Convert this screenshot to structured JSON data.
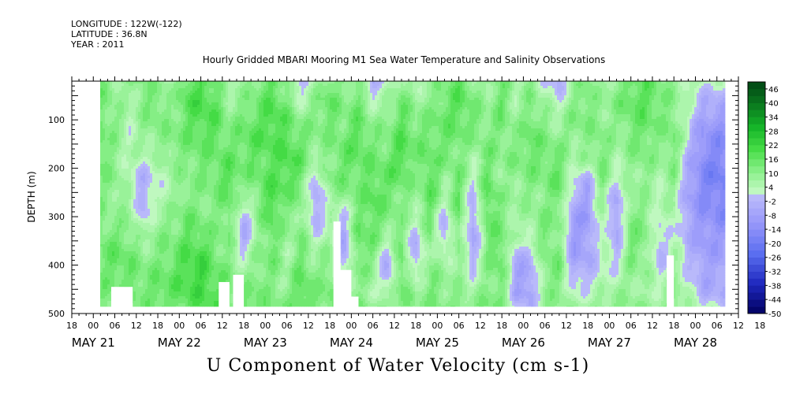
{
  "header": {
    "longitude": "LONGITUDE : 122W(-122)",
    "latitude": "LATITUDE : 36.8N",
    "year": "YEAR : 2011"
  },
  "chart_data": {
    "type": "heatmap",
    "title": "Hourly Gridded MBARI Mooring M1 Sea Water Temperature and Salinity Observations",
    "xlabel": "U Component of Water Velocity (cm s-1)",
    "ylabel": "DEPTH (m)",
    "ylim": [
      500,
      20
    ],
    "yticks": [
      100,
      200,
      300,
      400,
      500
    ],
    "y_data_range": [
      20,
      485
    ],
    "xlim_hours": [
      -6,
      180
    ],
    "x_data_range_hours": [
      2,
      176
    ],
    "xtick_hour_labels": [
      "18",
      "00",
      "06",
      "12",
      "18",
      "00",
      "06",
      "12",
      "18",
      "00",
      "06",
      "12",
      "18",
      "00",
      "06",
      "12",
      "18",
      "00",
      "06",
      "12",
      "18",
      "00",
      "06",
      "12",
      "18",
      "00",
      "06",
      "12",
      "18",
      "00",
      "06",
      "12",
      "18"
    ],
    "date_labels": [
      "MAY 21",
      "MAY 22",
      "MAY 23",
      "MAY 24",
      "MAY 25",
      "MAY 26",
      "MAY 27",
      "MAY 28"
    ],
    "colorbar": {
      "labels": [
        "46",
        "40",
        "34",
        "28",
        "22",
        "16",
        "10",
        "4",
        "-2",
        "-8",
        "-14",
        "-20",
        "-26",
        "-32",
        "-38",
        "-44",
        "-50"
      ],
      "levels_min": -50,
      "levels_max": 49,
      "levels_step": 3
    },
    "columns_hours": [
      2,
      6,
      10,
      14,
      18,
      22,
      26,
      30,
      34,
      38,
      42,
      46,
      50,
      54,
      58,
      62,
      66,
      70,
      74,
      78,
      82,
      86,
      90,
      94,
      98,
      102,
      106,
      110,
      114,
      118,
      122,
      126,
      130,
      134,
      138,
      142,
      146,
      150,
      154,
      158,
      162,
      166,
      170,
      174
    ],
    "depths_m": [
      20,
      60,
      100,
      140,
      180,
      220,
      260,
      300,
      340,
      380,
      420,
      460,
      485
    ],
    "values": [
      [
        14,
        13,
        12,
        16,
        14,
        12,
        11,
        12,
        13,
        14,
        13,
        12,
        12
      ],
      [
        8,
        10,
        12,
        10,
        9,
        11,
        10,
        8,
        14,
        16,
        15,
        13,
        12
      ],
      [
        10,
        4,
        5,
        3,
        6,
        2,
        8,
        10,
        12,
        14,
        15,
        14,
        13
      ],
      [
        12,
        12,
        10,
        8,
        4,
        -3,
        -5,
        -2,
        6,
        10,
        12,
        14,
        12
      ],
      [
        10,
        14,
        12,
        10,
        6,
        2,
        4,
        8,
        10,
        12,
        14,
        16,
        14
      ],
      [
        6,
        8,
        10,
        12,
        10,
        8,
        6,
        10,
        12,
        14,
        16,
        16,
        14
      ],
      [
        16,
        18,
        16,
        14,
        12,
        10,
        12,
        14,
        16,
        18,
        20,
        18,
        16
      ],
      [
        18,
        20,
        18,
        16,
        14,
        12,
        10,
        12,
        16,
        20,
        22,
        20,
        18
      ],
      [
        14,
        16,
        18,
        16,
        14,
        14,
        12,
        10,
        12,
        14,
        16,
        18,
        16
      ],
      [
        4,
        8,
        10,
        12,
        16,
        18,
        16,
        14,
        12,
        10,
        12,
        14,
        12
      ],
      [
        8,
        10,
        14,
        16,
        14,
        12,
        6,
        -4,
        -6,
        2,
        8,
        12,
        14
      ],
      [
        12,
        14,
        16,
        18,
        16,
        14,
        12,
        10,
        8,
        10,
        12,
        14,
        16
      ],
      [
        16,
        18,
        20,
        18,
        16,
        18,
        20,
        18,
        16,
        14,
        12,
        10,
        12
      ],
      [
        10,
        12,
        16,
        18,
        20,
        18,
        14,
        10,
        8,
        6,
        8,
        10,
        12
      ],
      [
        -3,
        4,
        10,
        14,
        16,
        14,
        12,
        10,
        12,
        14,
        16,
        18,
        16
      ],
      [
        6,
        10,
        12,
        10,
        8,
        -2,
        -6,
        -4,
        2,
        8,
        10,
        12,
        14
      ],
      [
        14,
        16,
        14,
        12,
        10,
        12,
        8,
        4,
        6,
        10,
        12,
        14,
        12
      ],
      [
        8,
        10,
        12,
        14,
        16,
        14,
        10,
        -2,
        -6,
        -8,
        2,
        10,
        12
      ],
      [
        12,
        14,
        16,
        18,
        16,
        14,
        12,
        14,
        16,
        14,
        12,
        10,
        12
      ],
      [
        -6,
        4,
        8,
        12,
        14,
        16,
        18,
        16,
        14,
        12,
        8,
        6,
        10
      ],
      [
        2,
        6,
        10,
        12,
        14,
        16,
        14,
        12,
        8,
        -4,
        -6,
        4,
        10
      ],
      [
        10,
        14,
        16,
        18,
        20,
        16,
        12,
        10,
        12,
        14,
        16,
        14,
        12
      ],
      [
        4,
        8,
        12,
        14,
        12,
        10,
        8,
        6,
        -3,
        -6,
        2,
        8,
        10
      ],
      [
        8,
        10,
        12,
        14,
        16,
        18,
        16,
        14,
        12,
        10,
        12,
        14,
        12
      ],
      [
        12,
        14,
        16,
        14,
        12,
        8,
        6,
        -2,
        -4,
        4,
        8,
        10,
        12
      ],
      [
        16,
        18,
        16,
        14,
        12,
        14,
        16,
        14,
        12,
        10,
        8,
        10,
        12
      ],
      [
        10,
        12,
        14,
        10,
        6,
        2,
        -3,
        -6,
        -8,
        -4,
        2,
        6,
        10
      ],
      [
        6,
        8,
        10,
        12,
        14,
        16,
        18,
        16,
        14,
        12,
        10,
        12,
        14
      ],
      [
        14,
        16,
        14,
        12,
        10,
        8,
        10,
        12,
        14,
        16,
        14,
        12,
        10
      ],
      [
        4,
        6,
        8,
        10,
        12,
        10,
        8,
        6,
        4,
        -4,
        -8,
        -6,
        2
      ],
      [
        10,
        12,
        14,
        16,
        14,
        12,
        10,
        8,
        6,
        -2,
        -6,
        -8,
        -4
      ],
      [
        2,
        6,
        10,
        12,
        14,
        12,
        10,
        12,
        14,
        12,
        10,
        8,
        10
      ],
      [
        -4,
        2,
        6,
        10,
        14,
        16,
        14,
        12,
        10,
        12,
        14,
        12,
        10
      ],
      [
        8,
        10,
        12,
        10,
        6,
        2,
        -4,
        -8,
        -10,
        -8,
        -4,
        2,
        6
      ],
      [
        12,
        14,
        12,
        10,
        8,
        -4,
        -8,
        -10,
        -8,
        -6,
        -2,
        4,
        8
      ],
      [
        6,
        8,
        10,
        12,
        14,
        12,
        10,
        8,
        6,
        4,
        2,
        6,
        10
      ],
      [
        10,
        12,
        10,
        8,
        6,
        2,
        -6,
        -8,
        -6,
        -2,
        4,
        8,
        10
      ],
      [
        14,
        16,
        14,
        12,
        10,
        8,
        10,
        12,
        14,
        12,
        10,
        8,
        10
      ],
      [
        16,
        18,
        16,
        14,
        12,
        10,
        8,
        10,
        12,
        10,
        8,
        6,
        8
      ],
      [
        12,
        14,
        12,
        10,
        8,
        6,
        4,
        2,
        -2,
        -4,
        2,
        6,
        8
      ],
      [
        8,
        10,
        12,
        14,
        12,
        10,
        8,
        6,
        4,
        6,
        8,
        10,
        12
      ],
      [
        6,
        4,
        2,
        0,
        -4,
        -6,
        -8,
        -6,
        -4,
        -2,
        2,
        4,
        6
      ],
      [
        4,
        -3,
        -8,
        -12,
        -14,
        -16,
        -14,
        -12,
        -10,
        -8,
        -6,
        -4,
        2
      ],
      [
        2,
        -4,
        -10,
        -14,
        -16,
        -18,
        -16,
        -14,
        -10,
        -8,
        -6,
        -4,
        0
      ]
    ],
    "gaps": [
      {
        "x0": 5,
        "x1": 11,
        "y0": 445,
        "y1": 490
      },
      {
        "x0": 35,
        "x1": 38,
        "y0": 435,
        "y1": 490
      },
      {
        "x0": 39,
        "x1": 42,
        "y0": 420,
        "y1": 490
      },
      {
        "x0": 67,
        "x1": 69,
        "y0": 310,
        "y1": 490
      },
      {
        "x0": 68,
        "x1": 72,
        "y0": 410,
        "y1": 490
      },
      {
        "x0": 71,
        "x1": 74,
        "y0": 465,
        "y1": 490
      },
      {
        "x0": 160,
        "x1": 162,
        "y0": 380,
        "y1": 490
      }
    ]
  }
}
